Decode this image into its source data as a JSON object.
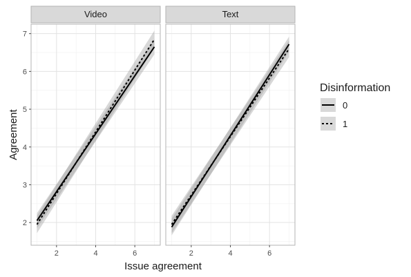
{
  "chart_data": {
    "type": "line",
    "xlabel": "Issue agreement",
    "ylabel": "Agreement",
    "xlim": [
      0.7,
      7.3
    ],
    "ylim": [
      1.4,
      7.25
    ],
    "x_ticks": [
      2,
      4,
      6
    ],
    "y_ticks": [
      2,
      3,
      4,
      5,
      6,
      7
    ],
    "grid": true,
    "legend": {
      "title": "Disinformation",
      "position": "right",
      "entries": [
        {
          "label": "0",
          "linestyle": "solid"
        },
        {
          "label": "1",
          "linestyle": "dashed"
        }
      ]
    },
    "panels": [
      {
        "facet": "Video",
        "series": [
          {
            "name": "0",
            "linestyle": "solid",
            "x": [
              1,
              7
            ],
            "y": [
              2.05,
              6.65
            ],
            "ci_lower": [
              1.85,
              6.45
            ],
            "ci_upper": [
              2.25,
              6.85
            ]
          },
          {
            "name": "1",
            "linestyle": "dashed",
            "x": [
              1,
              7
            ],
            "y": [
              1.95,
              6.85
            ],
            "ci_lower": [
              1.72,
              6.62
            ],
            "ci_upper": [
              2.18,
              7.08
            ]
          }
        ]
      },
      {
        "facet": "Text",
        "series": [
          {
            "name": "0",
            "linestyle": "solid",
            "x": [
              1,
              7
            ],
            "y": [
              1.88,
              6.72
            ],
            "ci_lower": [
              1.66,
              6.52
            ],
            "ci_upper": [
              2.1,
              6.92
            ]
          },
          {
            "name": "1",
            "linestyle": "dashed",
            "x": [
              1,
              7
            ],
            "y": [
              1.95,
              6.6
            ],
            "ci_lower": [
              1.72,
              6.38
            ],
            "ci_upper": [
              2.18,
              6.82
            ]
          }
        ]
      }
    ]
  }
}
